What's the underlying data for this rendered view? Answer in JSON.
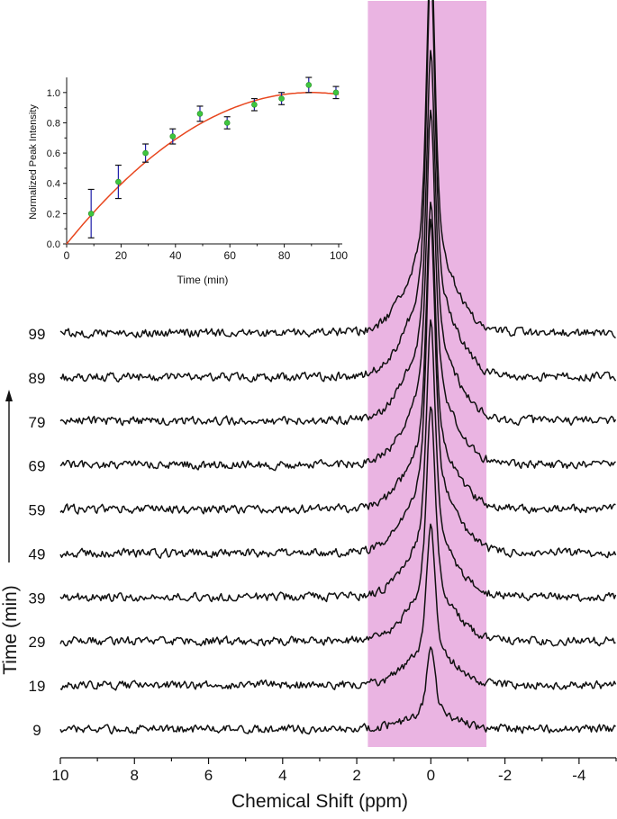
{
  "chart_data": [
    {
      "type": "line",
      "subtype": "stacked-spectra",
      "xlabel": "Chemical Shift (ppm)",
      "ylabel": "Time (min)",
      "xlim": [
        10,
        -5
      ],
      "x_ticks": [
        10,
        8,
        6,
        4,
        2,
        0,
        -2,
        -4
      ],
      "x_tick_labels": [
        "10",
        "8",
        "6",
        "4",
        "2",
        "0",
        "-2",
        "-4"
      ],
      "highlight_region_ppm": [
        1.7,
        -1.5
      ],
      "highlight_color": "#eab4e2",
      "peak_position_ppm": 0,
      "series": [
        {
          "name": "9",
          "time_min": 9,
          "peak_intensity": 0.2
        },
        {
          "name": "19",
          "time_min": 19,
          "peak_intensity": 0.41
        },
        {
          "name": "29",
          "time_min": 29,
          "peak_intensity": 0.6
        },
        {
          "name": "39",
          "time_min": 39,
          "peak_intensity": 0.71
        },
        {
          "name": "49",
          "time_min": 49,
          "peak_intensity": 0.86
        },
        {
          "name": "59",
          "time_min": 59,
          "peak_intensity": 0.8
        },
        {
          "name": "69",
          "time_min": 69,
          "peak_intensity": 0.92
        },
        {
          "name": "79",
          "time_min": 79,
          "peak_intensity": 0.96
        },
        {
          "name": "89",
          "time_min": 89,
          "peak_intensity": 1.05
        },
        {
          "name": "99",
          "time_min": 99,
          "peak_intensity": 1.0
        }
      ]
    },
    {
      "type": "scatter",
      "xlabel": "Time (min)",
      "ylabel": "Normalized Peak Intensity",
      "xlim": [
        0,
        100
      ],
      "ylim": [
        0,
        1.1
      ],
      "x_ticks": [
        0,
        20,
        40,
        60,
        80,
        100
      ],
      "y_ticks": [
        0.0,
        0.2,
        0.4,
        0.6,
        0.8,
        1.0
      ],
      "y_tick_labels": [
        "0.0",
        "0.2",
        "0.4",
        "0.6",
        "0.8",
        "1.0"
      ],
      "points": [
        {
          "x": 9,
          "y": 0.2,
          "err": 0.16
        },
        {
          "x": 19,
          "y": 0.41,
          "err": 0.11
        },
        {
          "x": 29,
          "y": 0.6,
          "err": 0.06
        },
        {
          "x": 39,
          "y": 0.71,
          "err": 0.05
        },
        {
          "x": 49,
          "y": 0.86,
          "err": 0.05
        },
        {
          "x": 59,
          "y": 0.8,
          "err": 0.04
        },
        {
          "x": 69,
          "y": 0.92,
          "err": 0.04
        },
        {
          "x": 79,
          "y": 0.96,
          "err": 0.04
        },
        {
          "x": 89,
          "y": 1.05,
          "err": 0.05
        },
        {
          "x": 99,
          "y": 1.0,
          "err": 0.04
        }
      ],
      "fit_curve": {
        "peak_x": 90,
        "peak_y": 1.0
      },
      "point_color": "#3ec63e",
      "errorbar_color": "#1e1eaa",
      "fit_color": "#e8461e"
    }
  ]
}
